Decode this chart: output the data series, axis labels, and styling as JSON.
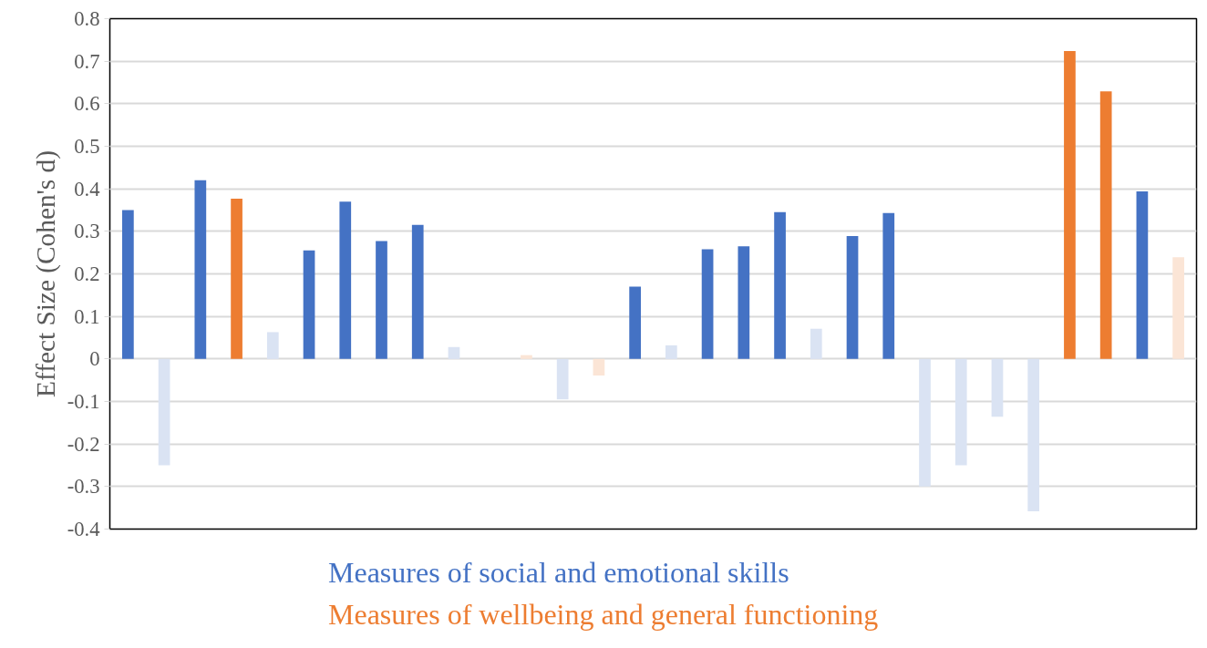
{
  "chart_data": {
    "type": "bar",
    "ylabel": "Effect Size (Cohen's d)",
    "categories": [
      null,
      null,
      null,
      null,
      null,
      null,
      null,
      null,
      null,
      null,
      null,
      null,
      null,
      null,
      null,
      null,
      null,
      null,
      null,
      null,
      null,
      null,
      null,
      null,
      null,
      null,
      null,
      null,
      null,
      null
    ],
    "series": [
      {
        "name": "Measures of social and emotional skills",
        "color": "#4472c4",
        "values": [
          0.35,
          -0.25,
          0.42,
          null,
          0.063,
          0.255,
          0.37,
          0.277,
          0.315,
          0.028,
          null,
          null,
          -0.095,
          null,
          0.17,
          0.032,
          0.258,
          0.265,
          0.345,
          0.071,
          0.289,
          0.343,
          -0.3,
          -0.25,
          -0.136,
          -0.358,
          null,
          null,
          0.394,
          null
        ],
        "colors": [
          "#4472c4",
          "#dae3f3",
          "#4472c4",
          null,
          "#dae3f3",
          "#4472c4",
          "#4472c4",
          "#4472c4",
          "#4472c4",
          "#dae3f3",
          null,
          null,
          "#dae3f3",
          null,
          "#4472c4",
          "#dae3f3",
          "#4472c4",
          "#4472c4",
          "#4472c4",
          "#dae3f3",
          "#4472c4",
          "#4472c4",
          "#dae3f3",
          "#dae3f3",
          "#dae3f3",
          "#dae3f3",
          null,
          null,
          "#4472c4",
          null
        ]
      },
      {
        "name": "Measures of wellbeing and general functioning",
        "color": "#ed7d31",
        "values": [
          null,
          null,
          null,
          0.377,
          null,
          null,
          null,
          null,
          null,
          null,
          null,
          0.009,
          null,
          -0.039,
          null,
          null,
          null,
          null,
          null,
          null,
          null,
          null,
          null,
          null,
          null,
          null,
          0.724,
          0.629,
          null,
          0.239
        ],
        "colors": [
          null,
          null,
          null,
          "#ed7d31",
          null,
          null,
          null,
          null,
          null,
          null,
          null,
          "#fbe5d6",
          null,
          "#fbe5d6",
          null,
          null,
          null,
          null,
          null,
          null,
          null,
          null,
          null,
          null,
          null,
          null,
          "#ed7d31",
          "#ed7d31",
          null,
          "#fbe5d6"
        ]
      }
    ],
    "ylim": [
      -0.4,
      0.8
    ],
    "yticks": [
      -0.4,
      -0.3,
      -0.2,
      -0.1,
      0,
      0.1,
      0.2,
      0.3,
      0.4,
      0.5,
      0.6,
      0.7,
      0.8
    ],
    "grid": "y",
    "legend": "bottom"
  }
}
